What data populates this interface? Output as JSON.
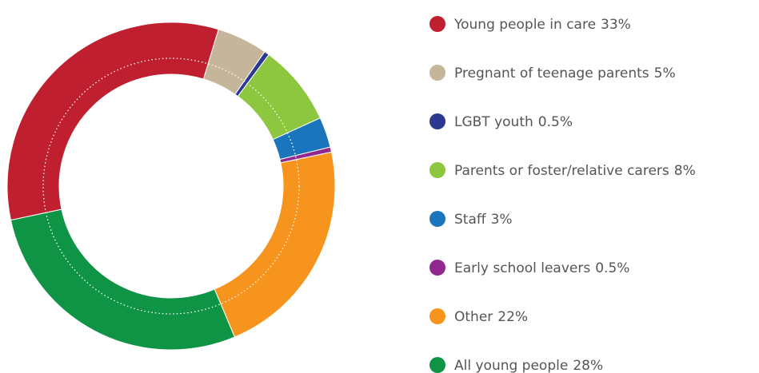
{
  "chart_data": {
    "type": "donut",
    "series": [
      {
        "name": "Young people in care",
        "color": "#c01f2f",
        "values": [
          33
        ],
        "value_labels": [
          "33%"
        ]
      },
      {
        "name": "Pregnant of teenage parents",
        "color": "#c5b59a",
        "values": [
          5
        ],
        "value_labels": [
          "5%"
        ]
      },
      {
        "name": "LGBT youth",
        "color": "#2b3990",
        "values": [
          0.5
        ],
        "value_labels": [
          "0.5%"
        ]
      },
      {
        "name": "Parents or foster/relative carers",
        "color": "#8dc63f",
        "values": [
          8
        ],
        "value_labels": [
          "8%"
        ]
      },
      {
        "name": "Staff",
        "color": "#1a75bc",
        "values": [
          3
        ],
        "value_labels": [
          "3%"
        ]
      },
      {
        "name": "Early school leavers",
        "color": "#92278f",
        "values": [
          0.5
        ],
        "value_labels": [
          "0.5%"
        ]
      },
      {
        "name": "Other",
        "color": "#f7941d",
        "values": [
          22
        ],
        "value_labels": [
          "22%"
        ]
      },
      {
        "name": "All young people",
        "color": "#0f9345",
        "values": [
          28
        ],
        "value_labels": [
          "28%"
        ]
      }
    ]
  }
}
